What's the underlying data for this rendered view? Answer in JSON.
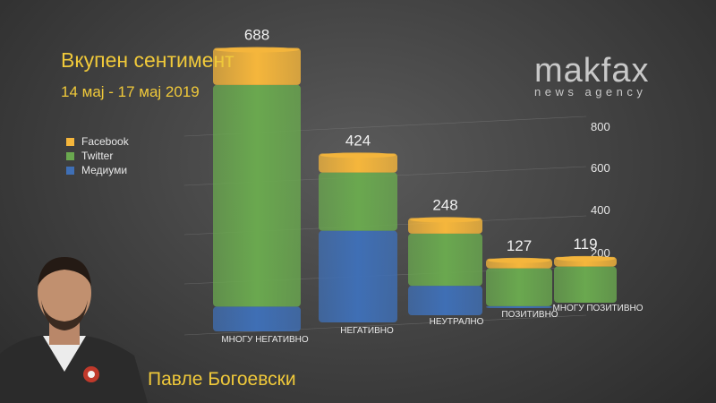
{
  "title": "Вкупен сентимент",
  "subtitle": "14 мај - 17 мај 2019",
  "logo": {
    "main": "makfax",
    "sub": "news agency"
  },
  "person_name": "Павле Богоевски",
  "colors": {
    "facebook": "#f5b63c",
    "twitter": "#6aa84f",
    "media": "#3f6fb5",
    "text": "#f0c93a"
  },
  "chart_data": {
    "type": "bar",
    "stacked": true,
    "title": "Вкупен сентимент",
    "subtitle": "14 мај - 17 мај 2019",
    "categories": [
      "МНОГУ НЕГАТИВНО",
      "НЕГАТИВНО",
      "НЕУТРАЛНО",
      "ПОЗИТИВНО",
      "МНОГУ ПОЗИТИВНО"
    ],
    "totals": [
      "688",
      "424",
      "248",
      "127",
      "119"
    ],
    "series": [
      {
        "name": "Медиуми",
        "color": "#3f6fb5",
        "values": [
          60,
          230,
          75,
          5,
          0
        ]
      },
      {
        "name": "Twitter",
        "color": "#6aa84f",
        "values": [
          538,
          146,
          133,
          97,
          94
        ]
      },
      {
        "name": "Facebook",
        "color": "#f5b63c",
        "values": [
          90,
          48,
          40,
          25,
          25
        ]
      }
    ],
    "yticks": [
      "200",
      "400",
      "600",
      "800"
    ],
    "ylim": [
      0,
      900
    ],
    "legend_position": "top-left",
    "grid": true
  }
}
